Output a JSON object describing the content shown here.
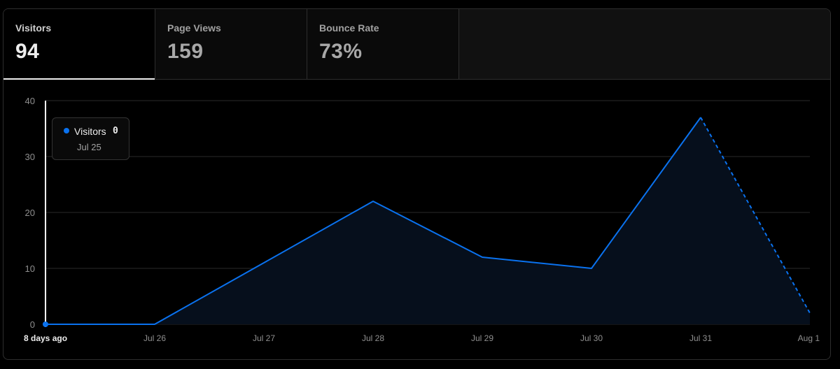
{
  "tabs": [
    {
      "label": "Visitors",
      "value": "94",
      "active": true
    },
    {
      "label": "Page Views",
      "value": "159",
      "active": false
    },
    {
      "label": "Bounce Rate",
      "value": "73%",
      "active": false
    }
  ],
  "tooltip": {
    "series": "Visitors",
    "value": "0",
    "date": "Jul 25"
  },
  "colors": {
    "line": "#0a72ef",
    "fill": "#060f1c",
    "grid": "#2a2a2a",
    "axis_text": "#8f8f8f",
    "cursor": "#ffffff"
  },
  "chart_data": {
    "type": "area",
    "categories": [
      "8 days ago",
      "Jul 26",
      "Jul 27",
      "Jul 28",
      "Jul 29",
      "Jul 30",
      "Jul 31",
      "Aug 1"
    ],
    "series": [
      {
        "name": "Visitors",
        "values": [
          0,
          0,
          11,
          22,
          12,
          10,
          37,
          2
        ]
      }
    ],
    "dashed_last_segment": true,
    "highlight_index": 0,
    "ylim": [
      0,
      40
    ],
    "yticks": [
      0,
      10,
      20,
      30,
      40
    ],
    "grid": true,
    "title": "",
    "xlabel": "",
    "ylabel": ""
  }
}
